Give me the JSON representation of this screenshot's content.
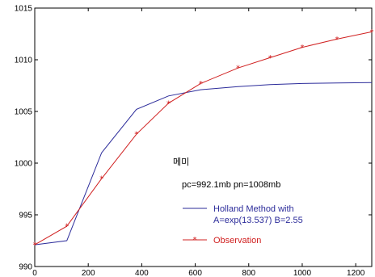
{
  "chart_data": {
    "type": "line",
    "title": "",
    "xlabel": "",
    "ylabel": "",
    "xlim": [
      0,
      1260
    ],
    "ylim": [
      990,
      1015
    ],
    "x_ticks": [
      0,
      200,
      400,
      600,
      800,
      1000,
      1200
    ],
    "y_ticks": [
      990,
      995,
      1000,
      1005,
      1010,
      1015
    ],
    "grid": false,
    "legend_position": "lower-right",
    "series": [
      {
        "name": "Holland Method with A=exp(13.537) B=2.55",
        "color": "#2b2b9a",
        "marker": "none",
        "x": [
          0,
          120,
          250,
          380,
          500,
          620,
          760,
          880,
          1000,
          1130,
          1260
        ],
        "y": [
          992.1,
          992.5,
          1001.0,
          1005.2,
          1006.5,
          1007.1,
          1007.4,
          1007.6,
          1007.7,
          1007.75,
          1007.8
        ]
      },
      {
        "name": "Observation",
        "color": "#d02020",
        "marker": "asterisk",
        "x": [
          0,
          120,
          250,
          380,
          500,
          620,
          760,
          880,
          1000,
          1130,
          1260
        ],
        "y": [
          992.1,
          993.9,
          998.5,
          1002.8,
          1005.8,
          1007.7,
          1009.2,
          1010.2,
          1011.2,
          1012.0,
          1012.7
        ]
      }
    ],
    "annotations": {
      "name_label": "메미",
      "params": "pc=992.1mb  pn=1008mb"
    },
    "legend": {
      "holland_line1": "Holland Method with",
      "holland_line2": "A=exp(13.537)  B=2.55",
      "holland_color": "#2b2b9a",
      "observation": "Observation",
      "observation_color": "#d02020"
    }
  }
}
